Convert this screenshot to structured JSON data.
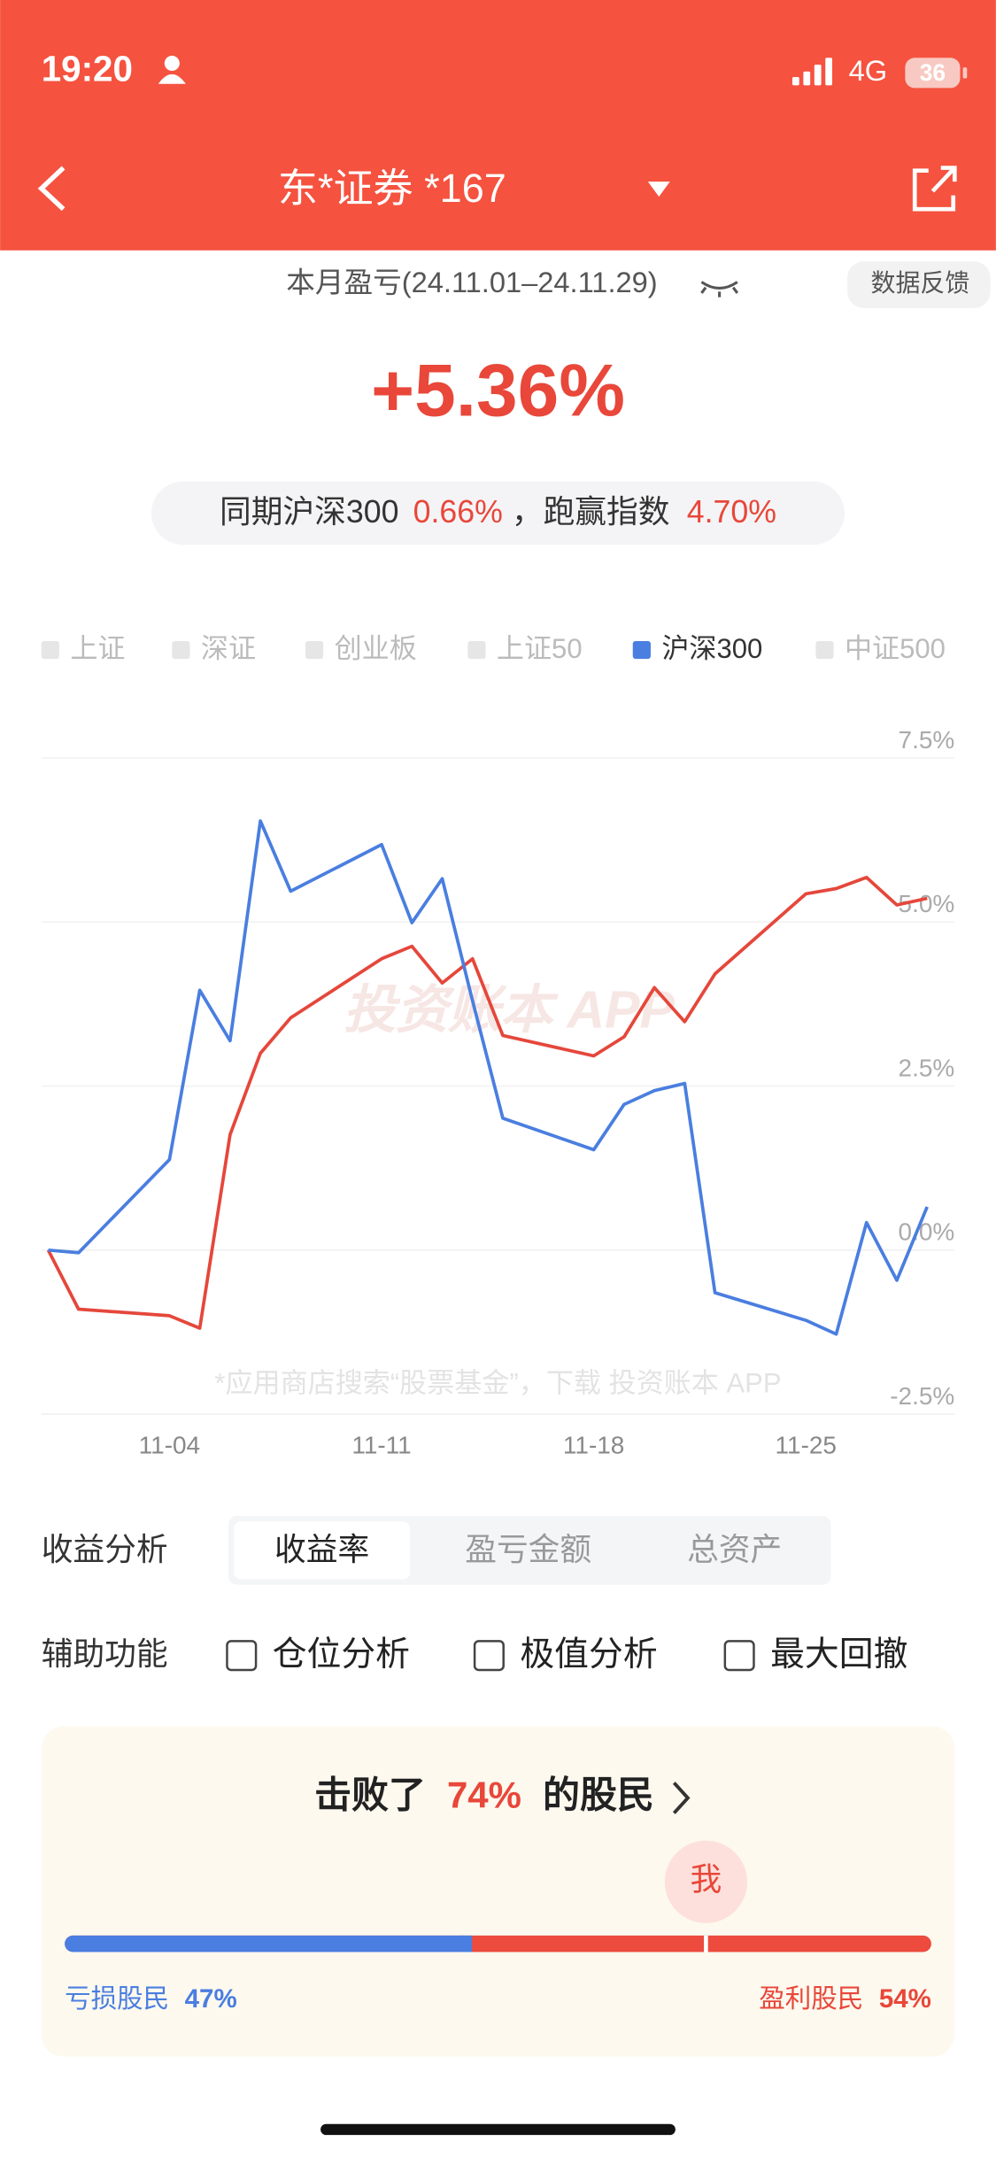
{
  "status_bar": {
    "time": "19:20",
    "network": "4G",
    "battery": "36"
  },
  "nav": {
    "title": "东*证券 *167"
  },
  "summary": {
    "period": "本月盈亏(24.11.01–24.11.29)",
    "feedback": "数据反馈",
    "return": "+5.36%",
    "compare_prefix": "同期沪深300",
    "compare_value": "0.66%",
    "compare_mid": "，跑赢指数",
    "beat_value": "4.70%"
  },
  "chart_data": {
    "type": "line",
    "legend": [
      "上证",
      "深证",
      "创业板",
      "上证50",
      "沪深300",
      "中证500"
    ],
    "active_legend": 4,
    "x": [
      "10-31",
      "11-01",
      "11-04",
      "11-05",
      "11-06",
      "11-07",
      "11-08",
      "11-11",
      "11-12",
      "11-13",
      "11-14",
      "11-15",
      "11-18",
      "11-19",
      "11-20",
      "11-21",
      "11-22",
      "11-25",
      "11-26",
      "11-27",
      "11-28",
      "11-29"
    ],
    "xlim": [
      "10-31",
      "11-29"
    ],
    "xticks": [
      "11-04",
      "11-11",
      "11-18",
      "11-25"
    ],
    "ylim": [
      -2.5,
      7.5
    ],
    "yticks": [
      {
        "value": 7.5,
        "label": "7.5%"
      },
      {
        "value": 5.0,
        "label": "5.0%"
      },
      {
        "value": 2.5,
        "label": "2.5%"
      },
      {
        "value": 0,
        "label": "0.0%"
      },
      {
        "value": -2.5,
        "label": "-2.5%"
      }
    ],
    "grid": true,
    "series": [
      {
        "color": "#e5473b",
        "values": [
          0,
          -0.9,
          -1.0,
          -1.19,
          1.76,
          3.0,
          3.54,
          4.44,
          4.63,
          4.07,
          4.44,
          3.27,
          2.96,
          3.25,
          4.0,
          3.48,
          4.21,
          5.43,
          5.51,
          5.68,
          5.26,
          5.36
        ]
      },
      {
        "color": "#4a7ee0",
        "values": [
          0,
          -0.04,
          1.38,
          3.96,
          3.19,
          6.54,
          5.47,
          6.18,
          4.99,
          5.66,
          3.8,
          2.01,
          1.53,
          2.22,
          2.43,
          2.54,
          -0.65,
          -1.07,
          -1.28,
          0.42,
          -0.46,
          0.66
        ]
      }
    ],
    "watermark": "投资账本 APP",
    "footnote": "*应用商店搜索“股票基金”，下载 投资账本 APP"
  },
  "analysis": {
    "label": "收益分析",
    "tabs": [
      "收益率",
      "盈亏金额",
      "总资产"
    ],
    "active_tab": 0
  },
  "tools": {
    "label": "辅助功能",
    "options": [
      "仓位分析",
      "极值分析",
      "最大回撤"
    ]
  },
  "ranking": {
    "prefix": "击败了",
    "beat": "74%",
    "suffix": "的股民",
    "marker": "我",
    "loss_label": "亏损股民",
    "loss_pct": "47%",
    "profit_label": "盈利股民",
    "profit_pct": "54%"
  }
}
